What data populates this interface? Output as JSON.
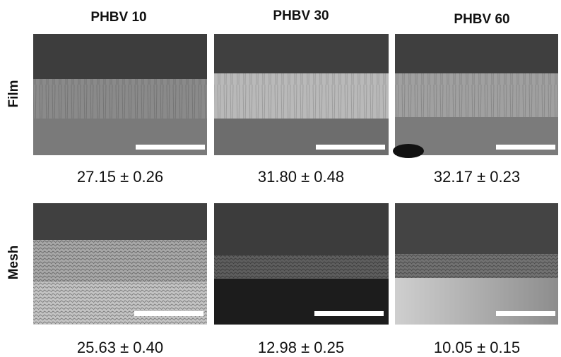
{
  "columns": [
    "PHBV 10",
    "PHBV 30",
    "PHBV 60"
  ],
  "rows": [
    {
      "label": "Film",
      "values": [
        "27.15 ± 0.26",
        "31.80 ± 0.48",
        "32.17 ± 0.23"
      ]
    },
    {
      "label": "Mesh",
      "values": [
        "25.63 ± 0.40",
        "12.98 ± 0.25",
        "10.05 ± 0.15"
      ]
    }
  ]
}
